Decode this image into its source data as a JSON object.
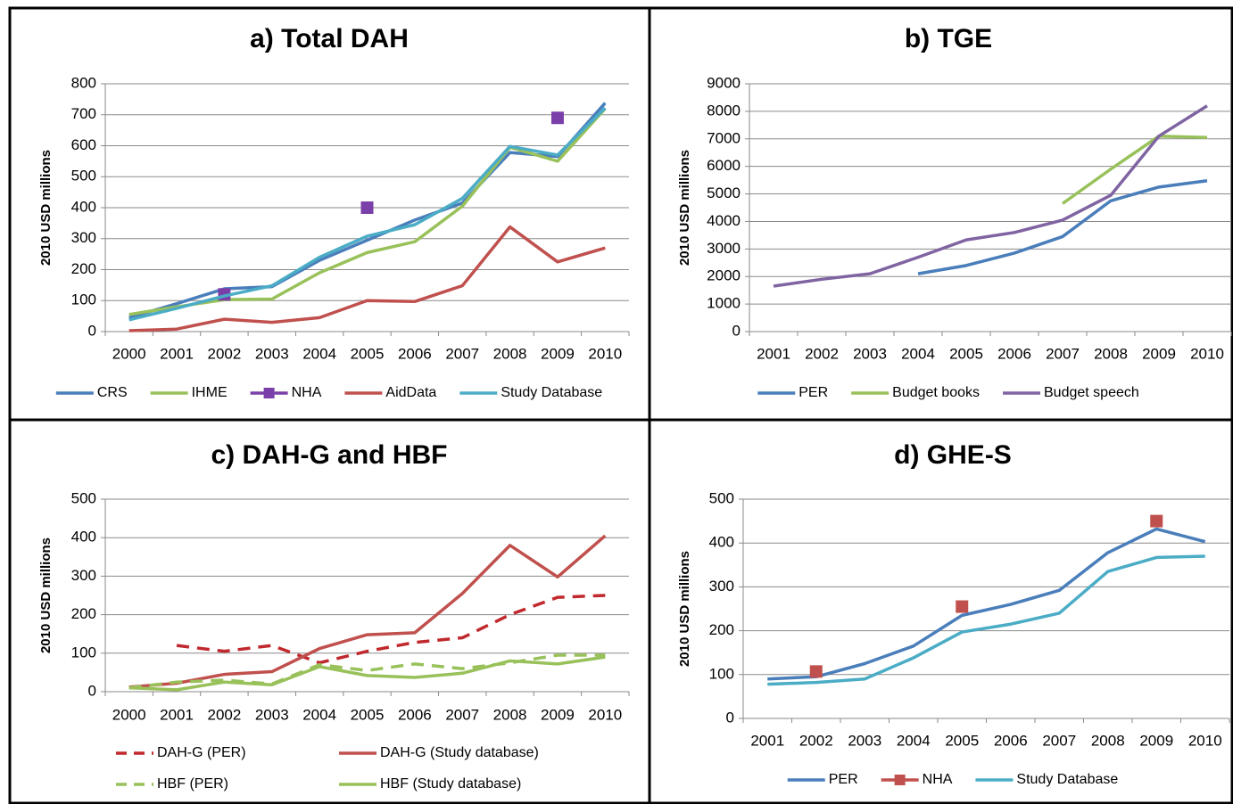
{
  "chart_data": [
    {
      "type": "line",
      "title": "a) Total DAH",
      "ylabel": "2010 USD millions",
      "categories": [
        "2000",
        "2001",
        "2002",
        "2003",
        "2004",
        "2005",
        "2006",
        "2007",
        "2008",
        "2009",
        "2010"
      ],
      "ylim": [
        0,
        800
      ],
      "yticks": [
        0,
        100,
        200,
        300,
        400,
        500,
        600,
        700,
        800
      ],
      "grid": true,
      "series": [
        {
          "name": "CRS",
          "color": "#4a7ebb",
          "values": [
            45,
            90,
            138,
            145,
            230,
            295,
            360,
            415,
            578,
            565,
            738
          ]
        },
        {
          "name": "IHME",
          "color": "#98c15a",
          "values": [
            55,
            80,
            103,
            105,
            190,
            255,
            290,
            405,
            595,
            550,
            720
          ]
        },
        {
          "name": "NHA",
          "color": "#7a3fa8",
          "marker": "square",
          "values": [
            null,
            null,
            120,
            null,
            null,
            400,
            null,
            null,
            null,
            690,
            null
          ]
        },
        {
          "name": "AidData",
          "color": "#c0504d",
          "values": [
            3,
            8,
            40,
            30,
            45,
            100,
            97,
            148,
            338,
            225,
            270
          ]
        },
        {
          "name": "Study Database",
          "color": "#4bacc6",
          "values": [
            38,
            75,
            115,
            148,
            240,
            308,
            345,
            430,
            598,
            570,
            722
          ]
        }
      ]
    },
    {
      "type": "line",
      "title": "b) TGE",
      "ylabel": "2010 USD millions",
      "categories": [
        "2001",
        "2002",
        "2003",
        "2004",
        "2005",
        "2006",
        "2007",
        "2008",
        "2009",
        "2010"
      ],
      "ylim": [
        0,
        9000
      ],
      "yticks": [
        0,
        1000,
        2000,
        3000,
        4000,
        5000,
        6000,
        7000,
        8000,
        9000
      ],
      "grid": true,
      "series": [
        {
          "name": "PER",
          "color": "#4a7ebb",
          "values": [
            null,
            null,
            null,
            2100,
            2400,
            2850,
            3450,
            4750,
            5250,
            5480
          ]
        },
        {
          "name": "Budget books",
          "color": "#98c15a",
          "values": [
            null,
            null,
            null,
            null,
            null,
            null,
            4650,
            5900,
            7100,
            7050
          ]
        },
        {
          "name": "Budget speech",
          "color": "#8064a2",
          "values": [
            1650,
            1900,
            2100,
            2700,
            3330,
            3600,
            4050,
            4950,
            7100,
            8200
          ]
        }
      ]
    },
    {
      "type": "line",
      "title": "c) DAH-G and HBF",
      "ylabel": "2010 USD millions",
      "categories": [
        "2000",
        "2001",
        "2002",
        "2003",
        "2004",
        "2005",
        "2006",
        "2007",
        "2008",
        "2009",
        "2010"
      ],
      "ylim": [
        0,
        500
      ],
      "yticks": [
        0,
        100,
        200,
        300,
        400,
        500
      ],
      "grid": true,
      "legend_columns": 2,
      "series": [
        {
          "name": "DAH-G (PER)",
          "color": "#c0282d",
          "dash": true,
          "values": [
            null,
            120,
            105,
            120,
            75,
            105,
            128,
            140,
            200,
            245,
            250
          ]
        },
        {
          "name": "DAH-G (Study database)",
          "color": "#c0504d",
          "values": [
            12,
            22,
            45,
            52,
            112,
            148,
            153,
            255,
            380,
            298,
            405
          ]
        },
        {
          "name": "HBF (PER)",
          "color": "#98c15a",
          "dash": true,
          "values": [
            10,
            25,
            30,
            20,
            70,
            55,
            72,
            60,
            75,
            95,
            95
          ]
        },
        {
          "name": "HBF (Study database)",
          "color": "#98c15a",
          "values": [
            10,
            5,
            25,
            18,
            65,
            42,
            37,
            48,
            80,
            72,
            90
          ]
        }
      ]
    },
    {
      "type": "line",
      "title": "d) GHE-S",
      "ylabel": "2010 USD millions",
      "categories": [
        "2001",
        "2002",
        "2003",
        "2004",
        "2005",
        "2006",
        "2007",
        "2008",
        "2009",
        "2010"
      ],
      "ylim": [
        0,
        500
      ],
      "yticks": [
        0,
        100,
        200,
        300,
        400,
        500
      ],
      "grid": true,
      "series": [
        {
          "name": "PER",
          "color": "#4a7ebb",
          "values": [
            90,
            95,
            125,
            165,
            235,
            260,
            292,
            378,
            432,
            403
          ]
        },
        {
          "name": "NHA",
          "color": "#c0504d",
          "marker": "square",
          "values": [
            null,
            107,
            null,
            null,
            255,
            null,
            null,
            null,
            450,
            null
          ]
        },
        {
          "name": "Study Database",
          "color": "#4bacc6",
          "values": [
            78,
            82,
            90,
            138,
            197,
            215,
            240,
            335,
            367,
            370
          ]
        }
      ]
    }
  ]
}
